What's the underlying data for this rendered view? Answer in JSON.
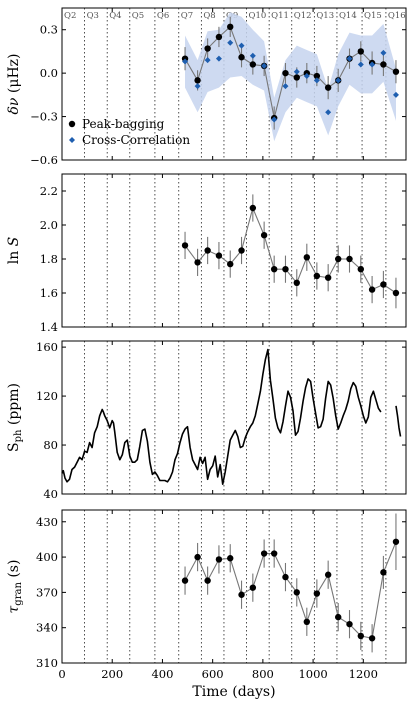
{
  "figure": {
    "xlabel": "Time (days)"
  },
  "chart_data": [
    {
      "type": "line",
      "panel": "frequency-shift",
      "ylabel": "δν (μHz)",
      "ylim": [
        -0.6,
        0.45
      ],
      "yticks": [
        -0.6,
        -0.3,
        0.0,
        0.3
      ],
      "ytick_labels": [
        "−0.6",
        "−0.3",
        "0.0",
        "0.3"
      ],
      "xlim": [
        0,
        1370
      ],
      "quarters": [
        {
          "label": "Q2",
          "x": 0
        },
        {
          "label": "Q3",
          "x": 90
        },
        {
          "label": "Q4",
          "x": 180
        },
        {
          "label": "Q5",
          "x": 270
        },
        {
          "label": "Q6",
          "x": 370
        },
        {
          "label": "Q7",
          "x": 465
        },
        {
          "label": "Q8",
          "x": 555
        },
        {
          "label": "Q9",
          "x": 645
        },
        {
          "label": "Q10",
          "x": 735
        },
        {
          "label": "Q11",
          "x": 825
        },
        {
          "label": "Q12",
          "x": 915
        },
        {
          "label": "Q13",
          "x": 1005
        },
        {
          "label": "Q14",
          "x": 1095
        },
        {
          "label": "Q15",
          "x": 1195
        },
        {
          "label": "Q16",
          "x": 1290
        }
      ],
      "legend": {
        "placement": "lower-left",
        "entries": [
          "Peak-bagging",
          "Cross-Correlation"
        ]
      },
      "series": [
        {
          "name": "Peak-bagging",
          "color": "#000000",
          "x": [
            490,
            540,
            580,
            625,
            670,
            715,
            760,
            805,
            845,
            890,
            935,
            975,
            1015,
            1060,
            1100,
            1145,
            1190,
            1235,
            1280,
            1330
          ],
          "y": [
            0.1,
            -0.05,
            0.17,
            0.25,
            0.32,
            0.11,
            0.06,
            0.05,
            -0.31,
            0.0,
            -0.03,
            0.0,
            -0.02,
            -0.1,
            -0.05,
            0.1,
            0.15,
            0.07,
            0.06,
            0.01
          ],
          "yerr": [
            0.08,
            0.07,
            0.07,
            0.07,
            0.07,
            0.07,
            0.07,
            0.07,
            0.08,
            0.07,
            0.07,
            0.07,
            0.07,
            0.08,
            0.08,
            0.07,
            0.07,
            0.08,
            0.08,
            0.08
          ]
        },
        {
          "name": "Cross-Correlation",
          "color": "#1f5fb0",
          "x": [
            490,
            540,
            580,
            625,
            670,
            715,
            760,
            805,
            845,
            890,
            935,
            975,
            1015,
            1060,
            1100,
            1145,
            1190,
            1235,
            1280,
            1330
          ],
          "y": [
            0.08,
            -0.09,
            0.09,
            0.1,
            0.21,
            0.19,
            0.12,
            0.05,
            -0.32,
            -0.09,
            0.01,
            -0.02,
            -0.05,
            -0.27,
            -0.05,
            0.1,
            0.06,
            0.06,
            0.14,
            -0.15
          ],
          "band_lower": [
            -0.1,
            -0.27,
            -0.13,
            -0.1,
            -0.03,
            -0.02,
            -0.08,
            -0.12,
            -0.47,
            -0.27,
            -0.17,
            -0.2,
            -0.23,
            -0.43,
            -0.23,
            -0.08,
            -0.14,
            -0.14,
            -0.06,
            -0.33
          ],
          "band_upper": [
            0.26,
            0.09,
            0.29,
            0.3,
            0.42,
            0.39,
            0.3,
            0.22,
            -0.17,
            0.09,
            0.19,
            0.16,
            0.13,
            -0.11,
            0.13,
            0.28,
            0.26,
            0.26,
            0.34,
            0.03
          ]
        }
      ]
    },
    {
      "type": "line",
      "panel": "lnS",
      "ylabel": "ln S",
      "ylim": [
        1.4,
        2.3
      ],
      "yticks": [
        1.4,
        1.6,
        1.8,
        2.0,
        2.2
      ],
      "ytick_labels": [
        "1.4",
        "1.6",
        "1.8",
        "2.0",
        "2.2"
      ],
      "xlim": [
        0,
        1370
      ],
      "series": [
        {
          "color": "#000000",
          "x": [
            490,
            540,
            580,
            625,
            670,
            715,
            760,
            805,
            845,
            890,
            935,
            975,
            1015,
            1060,
            1100,
            1145,
            1190,
            1235,
            1280,
            1330
          ],
          "y": [
            1.88,
            1.78,
            1.85,
            1.82,
            1.77,
            1.85,
            2.1,
            1.94,
            1.74,
            1.74,
            1.66,
            1.81,
            1.7,
            1.69,
            1.8,
            1.8,
            1.74,
            1.62,
            1.65,
            1.6
          ],
          "yerr": [
            0.08,
            0.08,
            0.08,
            0.08,
            0.08,
            0.08,
            0.08,
            0.08,
            0.08,
            0.08,
            0.08,
            0.08,
            0.08,
            0.08,
            0.08,
            0.08,
            0.08,
            0.08,
            0.08,
            0.09
          ]
        }
      ]
    },
    {
      "type": "line",
      "panel": "photometric-activity",
      "ylabel": "Sph (ppm)",
      "ylim": [
        40,
        165
      ],
      "yticks": [
        40,
        80,
        120,
        160
      ],
      "ytick_labels": [
        "40",
        "80",
        "120",
        "160"
      ],
      "xlim": [
        0,
        1370
      ],
      "series": [
        {
          "color": "#000000",
          "segments": [
            {
              "x": [
                0,
                5,
                12,
                20,
                30,
                40,
                50,
                60,
                70,
                80,
                90,
                100,
                110,
                120,
                130,
                140,
                150,
                160,
                165,
                170,
                180,
                190,
                200,
                205,
                210,
                220,
                230,
                240,
                250,
                260,
                270,
                280,
                290,
                300,
                310,
                320,
                330,
                340,
                350,
                360,
                370,
                380,
                390,
                400,
                410,
                420,
                430,
                440,
                450,
                460,
                470,
                480,
                490,
                500,
                510,
                520,
                530,
                540,
                550,
                560,
                570,
                580,
                590,
                600,
                610,
                620,
                630,
                640,
                650,
                660,
                670,
                680,
                690,
                700,
                710,
                720,
                730,
                740,
                750,
                760,
                770,
                780,
                790,
                800,
                810,
                820,
                830,
                840,
                850,
                860,
                870,
                880,
                890,
                900,
                910,
                920,
                930,
                940,
                950,
                960,
                970,
                980,
                990,
                1000,
                1010,
                1020,
                1030,
                1040,
                1050,
                1060,
                1070,
                1080,
                1090,
                1100,
                1110,
                1120,
                1130,
                1140,
                1150,
                1160,
                1170,
                1180,
                1190,
                1200,
                1210,
                1220,
                1230,
                1240,
                1250,
                1260,
                1270
              ],
              "y": [
                57,
                59,
                53,
                50,
                52,
                60,
                62,
                66,
                70,
                68,
                75,
                74,
                82,
                78,
                90,
                95,
                104,
                109,
                107,
                104,
                100,
                94,
                100,
                98,
                91,
                74,
                68,
                72,
                82,
                84,
                71,
                66,
                66,
                68,
                79,
                92,
                93,
                83,
                66,
                56,
                58,
                55,
                51,
                51,
                51,
                50,
                53,
                58,
                68,
                73,
                82,
                89,
                93,
                95,
                78,
                68,
                64,
                60,
                70,
                65,
                70,
                52,
                60,
                63,
                71,
                54,
                64,
                48,
                58,
                71,
                84,
                88,
                92,
                87,
                78,
                79,
                86,
                91,
                95,
                98,
                104,
                114,
                124,
                138,
                150,
                158,
                133,
                118,
                102,
                94,
                90,
                99,
                112,
                124,
                119,
                108,
                88,
                91,
                102,
                116,
                127,
                134,
                132,
                118,
                106,
                94,
                95,
                101,
                118,
                132,
                129,
                118,
                104,
                93,
                98,
                104,
                109,
                116,
                126,
                131,
                128,
                119,
                112,
                104,
                98,
                103,
                119,
                124,
                117,
                110,
                107
              ]
            },
            {
              "x": [
                1330,
                1336,
                1342,
                1348
              ],
              "y": [
                112,
                104,
                94,
                87
              ]
            }
          ]
        }
      ]
    },
    {
      "type": "line",
      "panel": "granulation-timescale",
      "ylabel": "τgran (s)",
      "ylim": [
        310,
        440
      ],
      "yticks": [
        310,
        340,
        370,
        400,
        430
      ],
      "ytick_labels": [
        "310",
        "340",
        "370",
        "400",
        "430"
      ],
      "xlim": [
        0,
        1370
      ],
      "xticks": [
        0,
        200,
        400,
        600,
        800,
        1000,
        1200
      ],
      "xtick_labels": [
        "0",
        "200",
        "400",
        "600",
        "800",
        "1000",
        "1200"
      ],
      "series": [
        {
          "color": "#000000",
          "x": [
            490,
            540,
            580,
            625,
            670,
            715,
            760,
            805,
            845,
            890,
            935,
            975,
            1015,
            1060,
            1100,
            1145,
            1190,
            1235,
            1280,
            1330
          ],
          "y": [
            380,
            400,
            380,
            398,
            399,
            368,
            374,
            403,
            403,
            383,
            370,
            345,
            369,
            385,
            349,
            343,
            333,
            331,
            387,
            413
          ],
          "yerr": [
            12,
            12,
            12,
            12,
            12,
            12,
            12,
            12,
            12,
            12,
            12,
            12,
            12,
            12,
            12,
            12,
            12,
            12,
            14,
            24
          ]
        }
      ]
    }
  ]
}
